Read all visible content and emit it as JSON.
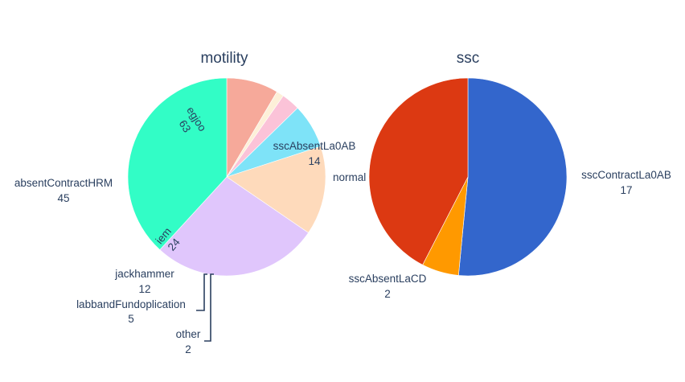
{
  "chart_data": [
    {
      "type": "pie",
      "title": "motility",
      "slices": [
        {
          "label": "sscAbsentLa0AB",
          "value": 14,
          "display_value": "14",
          "color": "#f6a99a"
        },
        {
          "label": "other",
          "value": 2,
          "display_value": "2",
          "color": "#fdf0d8"
        },
        {
          "label": "labbandFundoplication",
          "value": 5,
          "display_value": "5",
          "color": "#fbc3d8"
        },
        {
          "label": "jackhammer",
          "value": 12,
          "display_value": "12",
          "color": "#7ee3f8"
        },
        {
          "label": "iem",
          "value": 24,
          "display_value": "24",
          "color": "#fedabb"
        },
        {
          "label": "absentContractHRM",
          "value": 45,
          "display_value": "45",
          "color": "#e0c6fc"
        },
        {
          "label": "egjoo",
          "value": 63,
          "display_value": "63",
          "color": "#32fdc6"
        }
      ]
    },
    {
      "type": "pie",
      "title": "ssc",
      "slices": [
        {
          "label": "sscContractLa0AB",
          "value": 17,
          "display_value": "17",
          "color": "#3366cc"
        },
        {
          "label": "sscAbsentLaCD",
          "value": 2,
          "display_value": "2",
          "color": "#ff9900"
        },
        {
          "label": "normal",
          "value": 14,
          "display_value": "",
          "color": "#dc3912"
        }
      ]
    }
  ]
}
